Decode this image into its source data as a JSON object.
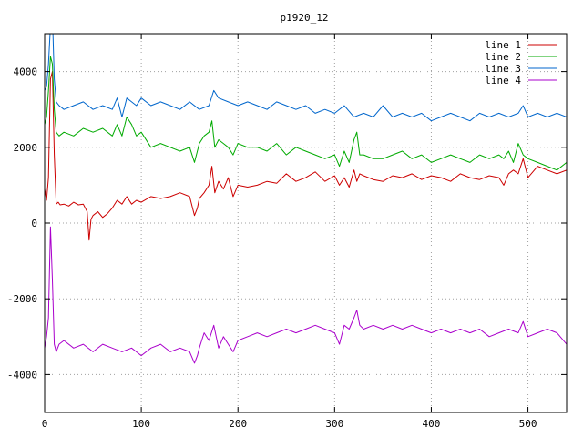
{
  "chart_data": {
    "type": "line",
    "title": "p1920_12",
    "xlabel": "",
    "ylabel": "",
    "xlim": [
      0,
      540
    ],
    "ylim": [
      -5000,
      5000
    ],
    "xticks": [
      0,
      100,
      200,
      300,
      400,
      500
    ],
    "yticks": [
      -4000,
      -2000,
      0,
      2000,
      4000
    ],
    "grid": true,
    "legend_position": "top-right",
    "series": [
      {
        "name": "line 1",
        "color": "#cc0000",
        "x": [
          0,
          2,
          4,
          6,
          8,
          10,
          12,
          14,
          16,
          20,
          25,
          30,
          35,
          40,
          44,
          46,
          48,
          50,
          55,
          60,
          65,
          70,
          75,
          80,
          85,
          90,
          95,
          100,
          110,
          120,
          130,
          140,
          150,
          155,
          158,
          160,
          165,
          170,
          173,
          176,
          180,
          185,
          190,
          195,
          200,
          210,
          220,
          230,
          240,
          250,
          260,
          270,
          280,
          290,
          300,
          305,
          310,
          315,
          320,
          323,
          326,
          330,
          340,
          350,
          360,
          370,
          380,
          390,
          400,
          410,
          420,
          430,
          440,
          450,
          460,
          470,
          475,
          480,
          485,
          490,
          495,
          500,
          510,
          520,
          530,
          540
        ],
        "y": [
          900,
          600,
          1200,
          3800,
          4000,
          1800,
          500,
          550,
          480,
          500,
          450,
          550,
          480,
          500,
          300,
          -450,
          100,
          200,
          300,
          150,
          250,
          400,
          600,
          500,
          700,
          500,
          600,
          550,
          700,
          650,
          700,
          800,
          700,
          200,
          400,
          650,
          800,
          1000,
          1500,
          800,
          1100,
          900,
          1200,
          700,
          1000,
          950,
          1000,
          1100,
          1050,
          1300,
          1100,
          1200,
          1350,
          1100,
          1250,
          1000,
          1200,
          950,
          1400,
          1100,
          1300,
          1250,
          1150,
          1100,
          1250,
          1200,
          1300,
          1150,
          1250,
          1200,
          1100,
          1300,
          1200,
          1150,
          1250,
          1200,
          1000,
          1300,
          1400,
          1300,
          1700,
          1200,
          1500,
          1400,
          1300,
          1400
        ]
      },
      {
        "name": "line 2",
        "color": "#00aa00",
        "x": [
          0,
          2,
          4,
          6,
          8,
          10,
          12,
          15,
          20,
          30,
          40,
          50,
          60,
          70,
          75,
          80,
          85,
          90,
          95,
          100,
          110,
          120,
          130,
          140,
          150,
          155,
          160,
          165,
          170,
          173,
          176,
          180,
          185,
          190,
          195,
          200,
          210,
          220,
          230,
          240,
          250,
          260,
          270,
          280,
          290,
          300,
          305,
          310,
          315,
          320,
          323,
          326,
          330,
          340,
          350,
          360,
          370,
          380,
          390,
          400,
          410,
          420,
          430,
          440,
          450,
          460,
          470,
          475,
          480,
          485,
          490,
          495,
          500,
          510,
          520,
          530,
          540
        ],
        "y": [
          2600,
          2800,
          3500,
          4400,
          4200,
          3000,
          2400,
          2300,
          2400,
          2300,
          2500,
          2400,
          2500,
          2300,
          2600,
          2300,
          2800,
          2600,
          2300,
          2400,
          2000,
          2100,
          2000,
          1900,
          2000,
          1600,
          2100,
          2300,
          2400,
          2700,
          2000,
          2200,
          2100,
          2000,
          1800,
          2100,
          2000,
          2000,
          1900,
          2100,
          1800,
          2000,
          1900,
          1800,
          1700,
          1800,
          1500,
          1900,
          1600,
          2200,
          2400,
          1800,
          1800,
          1700,
          1700,
          1800,
          1900,
          1700,
          1800,
          1600,
          1700,
          1800,
          1700,
          1600,
          1800,
          1700,
          1800,
          1700,
          1900,
          1600,
          2100,
          1800,
          1700,
          1600,
          1500,
          1400,
          1600
        ]
      },
      {
        "name": "line 3",
        "color": "#0066cc",
        "x": [
          0,
          2,
          4,
          6,
          8,
          10,
          12,
          15,
          20,
          30,
          40,
          50,
          60,
          70,
          75,
          80,
          85,
          90,
          95,
          100,
          110,
          120,
          130,
          140,
          150,
          160,
          170,
          175,
          180,
          190,
          200,
          210,
          220,
          230,
          240,
          250,
          260,
          270,
          280,
          290,
          300,
          310,
          320,
          330,
          340,
          350,
          360,
          370,
          380,
          390,
          400,
          410,
          420,
          430,
          440,
          450,
          460,
          470,
          480,
          490,
          495,
          500,
          510,
          520,
          530,
          540
        ],
        "y": [
          3500,
          3600,
          4200,
          5200,
          5500,
          3800,
          3200,
          3100,
          3000,
          3100,
          3200,
          3000,
          3100,
          3000,
          3300,
          2800,
          3300,
          3200,
          3100,
          3300,
          3100,
          3200,
          3100,
          3000,
          3200,
          3000,
          3100,
          3500,
          3300,
          3200,
          3100,
          3200,
          3100,
          3000,
          3200,
          3100,
          3000,
          3100,
          2900,
          3000,
          2900,
          3100,
          2800,
          2900,
          2800,
          3100,
          2800,
          2900,
          2800,
          2900,
          2700,
          2800,
          2900,
          2800,
          2700,
          2900,
          2800,
          2900,
          2800,
          2900,
          3100,
          2800,
          2900,
          2800,
          2900,
          2800
        ]
      },
      {
        "name": "line 4",
        "color": "#aa00cc",
        "x": [
          0,
          2,
          4,
          6,
          8,
          10,
          12,
          15,
          20,
          30,
          40,
          50,
          60,
          70,
          80,
          90,
          100,
          110,
          120,
          130,
          140,
          150,
          155,
          158,
          160,
          165,
          170,
          175,
          180,
          185,
          190,
          195,
          200,
          210,
          220,
          230,
          240,
          250,
          260,
          270,
          280,
          290,
          300,
          305,
          310,
          315,
          320,
          323,
          326,
          330,
          340,
          350,
          360,
          370,
          380,
          390,
          400,
          410,
          420,
          430,
          440,
          450,
          460,
          470,
          480,
          490,
          495,
          500,
          510,
          520,
          530,
          540
        ],
        "y": [
          -3300,
          -3000,
          -2500,
          -100,
          -1500,
          -3200,
          -3400,
          -3200,
          -3100,
          -3300,
          -3200,
          -3400,
          -3200,
          -3300,
          -3400,
          -3300,
          -3500,
          -3300,
          -3200,
          -3400,
          -3300,
          -3400,
          -3700,
          -3500,
          -3300,
          -2900,
          -3100,
          -2700,
          -3300,
          -3000,
          -3200,
          -3400,
          -3100,
          -3000,
          -2900,
          -3000,
          -2900,
          -2800,
          -2900,
          -2800,
          -2700,
          -2800,
          -2900,
          -3200,
          -2700,
          -2800,
          -2500,
          -2300,
          -2700,
          -2800,
          -2700,
          -2800,
          -2700,
          -2800,
          -2700,
          -2800,
          -2900,
          -2800,
          -2900,
          -2800,
          -2900,
          -2800,
          -3000,
          -2900,
          -2800,
          -2900,
          -2600,
          -3000,
          -2900,
          -2800,
          -2900,
          -3200
        ]
      }
    ]
  }
}
